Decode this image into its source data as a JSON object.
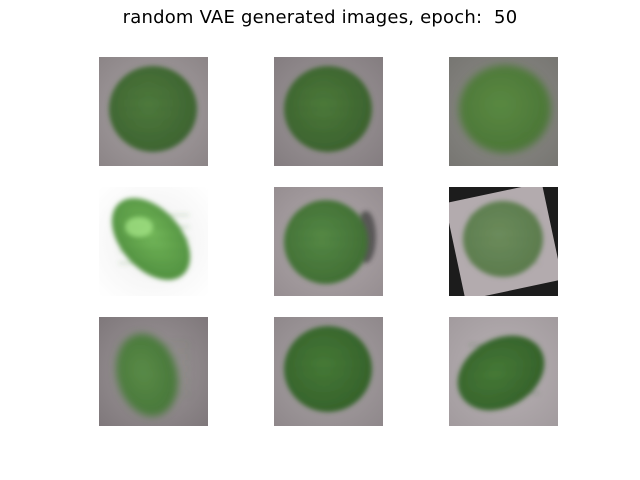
{
  "title": "random VAE generated images, epoch:  50",
  "colors": {
    "background": "#ffffff",
    "leaf_green": "#4f7c3d",
    "leaf_green_light": "#7cc25f",
    "tile_gray": "#a8a2a4"
  },
  "grid": {
    "rows": 3,
    "cols": 3
  },
  "tiles": [
    {
      "bg": "#a9a3a5",
      "bgEdge": "#8c8587",
      "leaf": "#4e7a3c",
      "leafDark": "#3c6230",
      "shape": "round"
    },
    {
      "bg": "#a09a9c",
      "bgEdge": "#847d80",
      "leaf": "#4c7a3a",
      "leafDark": "#3a602d",
      "shape": "round"
    },
    {
      "bg": "#8f8e8a",
      "bgEdge": "#777672",
      "leaf": "#5a8a42",
      "leafDark": "#4a7436",
      "shape": "blurred"
    },
    {
      "bg": "#eeeeee",
      "bgEdge": "#ffffff",
      "leaf": "#74b85a",
      "leafDark": "#4f8e3e",
      "shape": "tilted-light"
    },
    {
      "bg": "#b2aaad",
      "bgEdge": "#968e91",
      "leaf": "#558945",
      "leafDark": "#3f6c33",
      "shape": "round-shadow"
    },
    {
      "bg": "#b3abae",
      "bgEdge": "#1b1b1b",
      "leaf": "#6c8c5c",
      "leafDark": "#5a7a4c",
      "shape": "rotated-square"
    },
    {
      "bg": "#9f999b",
      "bgEdge": "#7f787b",
      "leaf": "#5a8c48",
      "leafDark": "#467538",
      "shape": "oval-blurred"
    },
    {
      "bg": "#aaa4a6",
      "bgEdge": "#8f888b",
      "leaf": "#467a36",
      "leafDark": "#34602a",
      "shape": "round"
    },
    {
      "bg": "#b9b2b5",
      "bgEdge": "#a29b9e",
      "leaf": "#467a36",
      "leafDark": "#34602a",
      "shape": "tilted-oval"
    }
  ]
}
